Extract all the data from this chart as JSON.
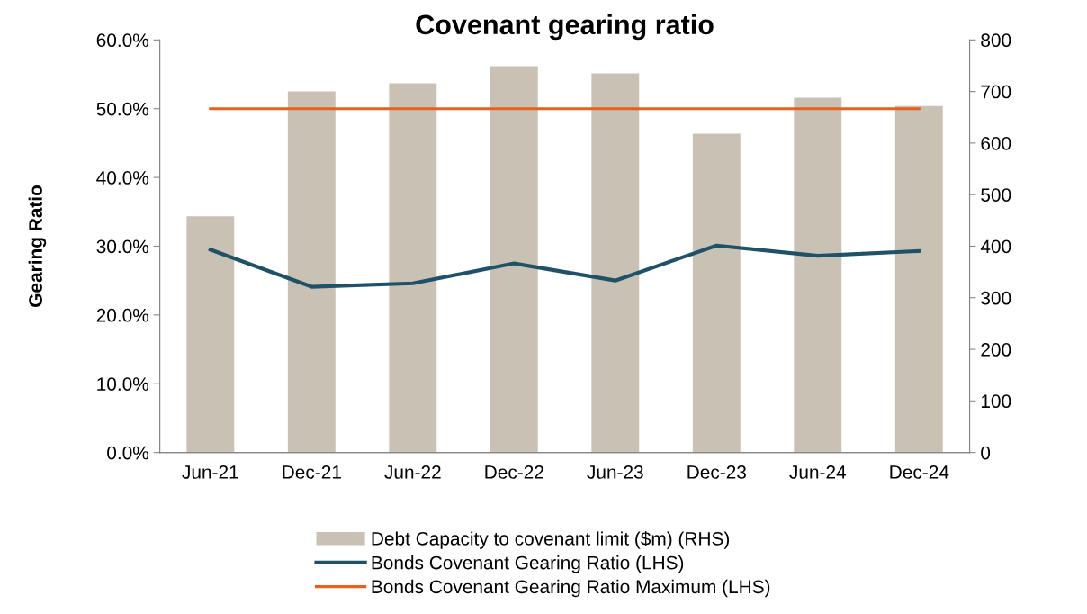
{
  "chart_data": {
    "type": "bar",
    "title": "Covenant gearing ratio",
    "ylabel": "Gearing Ratio",
    "categories": [
      "Jun-21",
      "Dec-21",
      "Jun-22",
      "Dec-22",
      "Jun-23",
      "Dec-23",
      "Jun-24",
      "Dec-24"
    ],
    "series": [
      {
        "name": "Debt Capacity to covenant limit ($m) (RHS)",
        "axis": "y2",
        "color": "#c9c2b4",
        "values": [
          458,
          700,
          716,
          749,
          735,
          618,
          688,
          672
        ]
      },
      {
        "name": "Bonds Covenant Gearing Ratio (LHS)",
        "type": "line",
        "color": "#1f5268",
        "values": [
          29.5,
          24.1,
          24.6,
          27.5,
          25.0,
          30.1,
          28.6,
          29.3
        ]
      },
      {
        "name": "Bonds Covenant Gearing Ratio Maximum (LHS)",
        "type": "line",
        "color": "#e8601c",
        "values": [
          50,
          50,
          50,
          50,
          50,
          50,
          50,
          50
        ]
      }
    ],
    "ylim": [
      0,
      60
    ],
    "yticks": [
      {
        "value": 0,
        "label": "0.0%"
      },
      {
        "value": 10,
        "label": "10.0%"
      },
      {
        "value": 20,
        "label": "20.0%"
      },
      {
        "value": 30,
        "label": "30.0%"
      },
      {
        "value": 40,
        "label": "40.0%"
      },
      {
        "value": 50,
        "label": "50.0%"
      },
      {
        "value": 60,
        "label": "60.0%"
      }
    ],
    "y2lim": [
      0,
      800
    ],
    "y2ticks": [
      0,
      100,
      200,
      300,
      400,
      500,
      600,
      700,
      800
    ],
    "legend": "bottom",
    "grid": false,
    "marker": "none",
    "line_style": "solid"
  }
}
